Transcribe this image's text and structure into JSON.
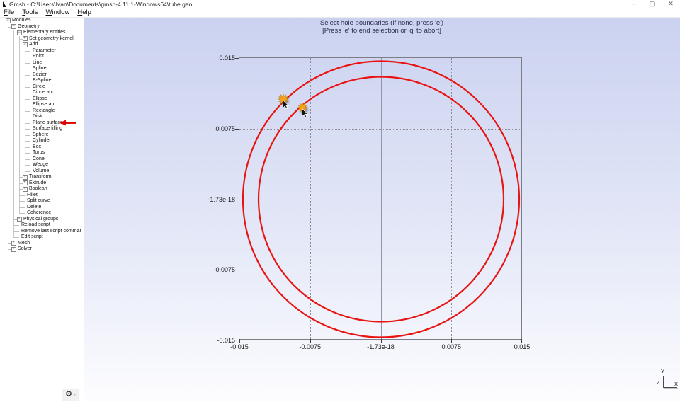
{
  "window": {
    "title": "Gmsh - C:\\Users\\Ivan\\Documents\\gmsh-4.11.1-Windows64\\tube.geo",
    "controls": {
      "minimize": "–",
      "maximize": "▢",
      "close": "✕"
    }
  },
  "menubar": {
    "items": [
      "File",
      "Tools",
      "Window",
      "Help"
    ]
  },
  "sidebar": {
    "tree": [
      {
        "label": "Modules",
        "level": 0,
        "box": "minus"
      },
      {
        "label": "Geometry",
        "level": 1,
        "box": "minus"
      },
      {
        "label": "Elementary entities",
        "level": 2,
        "box": "minus"
      },
      {
        "label": "Set geometry kernel",
        "level": 3,
        "box": "plus"
      },
      {
        "label": "Add",
        "level": 3,
        "box": "minus"
      },
      {
        "label": "Parameter",
        "level": 4,
        "box": null
      },
      {
        "label": "Point",
        "level": 4,
        "box": null
      },
      {
        "label": "Line",
        "level": 4,
        "box": null
      },
      {
        "label": "Spline",
        "level": 4,
        "box": null
      },
      {
        "label": "Bezier",
        "level": 4,
        "box": null
      },
      {
        "label": "B-Spline",
        "level": 4,
        "box": null
      },
      {
        "label": "Circle",
        "level": 4,
        "box": null
      },
      {
        "label": "Circle arc",
        "level": 4,
        "box": null
      },
      {
        "label": "Ellipse",
        "level": 4,
        "box": null
      },
      {
        "label": "Ellipse arc",
        "level": 4,
        "box": null
      },
      {
        "label": "Rectangle",
        "level": 4,
        "box": null
      },
      {
        "label": "Disk",
        "level": 4,
        "box": null
      },
      {
        "label": "Plane surface",
        "level": 4,
        "box": null,
        "pointed": true
      },
      {
        "label": "Surface filling",
        "level": 4,
        "box": null
      },
      {
        "label": "Sphere",
        "level": 4,
        "box": null
      },
      {
        "label": "Cylinder",
        "level": 4,
        "box": null
      },
      {
        "label": "Box",
        "level": 4,
        "box": null
      },
      {
        "label": "Torus",
        "level": 4,
        "box": null
      },
      {
        "label": "Cone",
        "level": 4,
        "box": null
      },
      {
        "label": "Wedge",
        "level": 4,
        "box": null
      },
      {
        "label": "Volume",
        "level": 4,
        "box": null
      },
      {
        "label": "Transform",
        "level": 3,
        "box": "plus"
      },
      {
        "label": "Extrude",
        "level": 3,
        "box": "plus"
      },
      {
        "label": "Boolean",
        "level": 3,
        "box": "plus"
      },
      {
        "label": "Fillet",
        "level": 3,
        "box": null
      },
      {
        "label": "Split curve",
        "level": 3,
        "box": null
      },
      {
        "label": "Delete",
        "level": 3,
        "box": null
      },
      {
        "label": "Coherence",
        "level": 3,
        "box": null
      },
      {
        "label": "Physical groups",
        "level": 2,
        "box": "plus"
      },
      {
        "label": "Reload script",
        "level": 2,
        "box": null
      },
      {
        "label": "Remove last script commar",
        "level": 2,
        "box": null
      },
      {
        "label": "Edit script",
        "level": 2,
        "box": null
      },
      {
        "label": "Mesh",
        "level": 1,
        "box": "plus"
      },
      {
        "label": "Solver",
        "level": 1,
        "box": "plus"
      }
    ],
    "gear_icon": "⚙",
    "gear_caret": "▼"
  },
  "canvas": {
    "messages": [
      "Select hole boundaries (if none, press 'e')",
      "[Press 'e' to end selection or 'q' to abort]"
    ],
    "plot": {
      "y_tick_labels": [
        "0.015",
        "0.0075",
        "-1.73e-18",
        "-0.0075",
        "-0.015"
      ],
      "x_tick_labels": [
        "-0.015",
        "-0.0075",
        "-1.73e-18",
        "0.0075",
        "0.015"
      ]
    },
    "gizmo": {
      "x": "X",
      "y": "Y",
      "z": "Z"
    },
    "star_icon": "✹"
  },
  "colors": {
    "circle_red": "#e91412",
    "star_orange": "#f5a11c",
    "pointer_red": "#e00000",
    "canvas_gradient_top": "#cbd2f0",
    "canvas_gradient_bottom": "#fdfdff"
  }
}
